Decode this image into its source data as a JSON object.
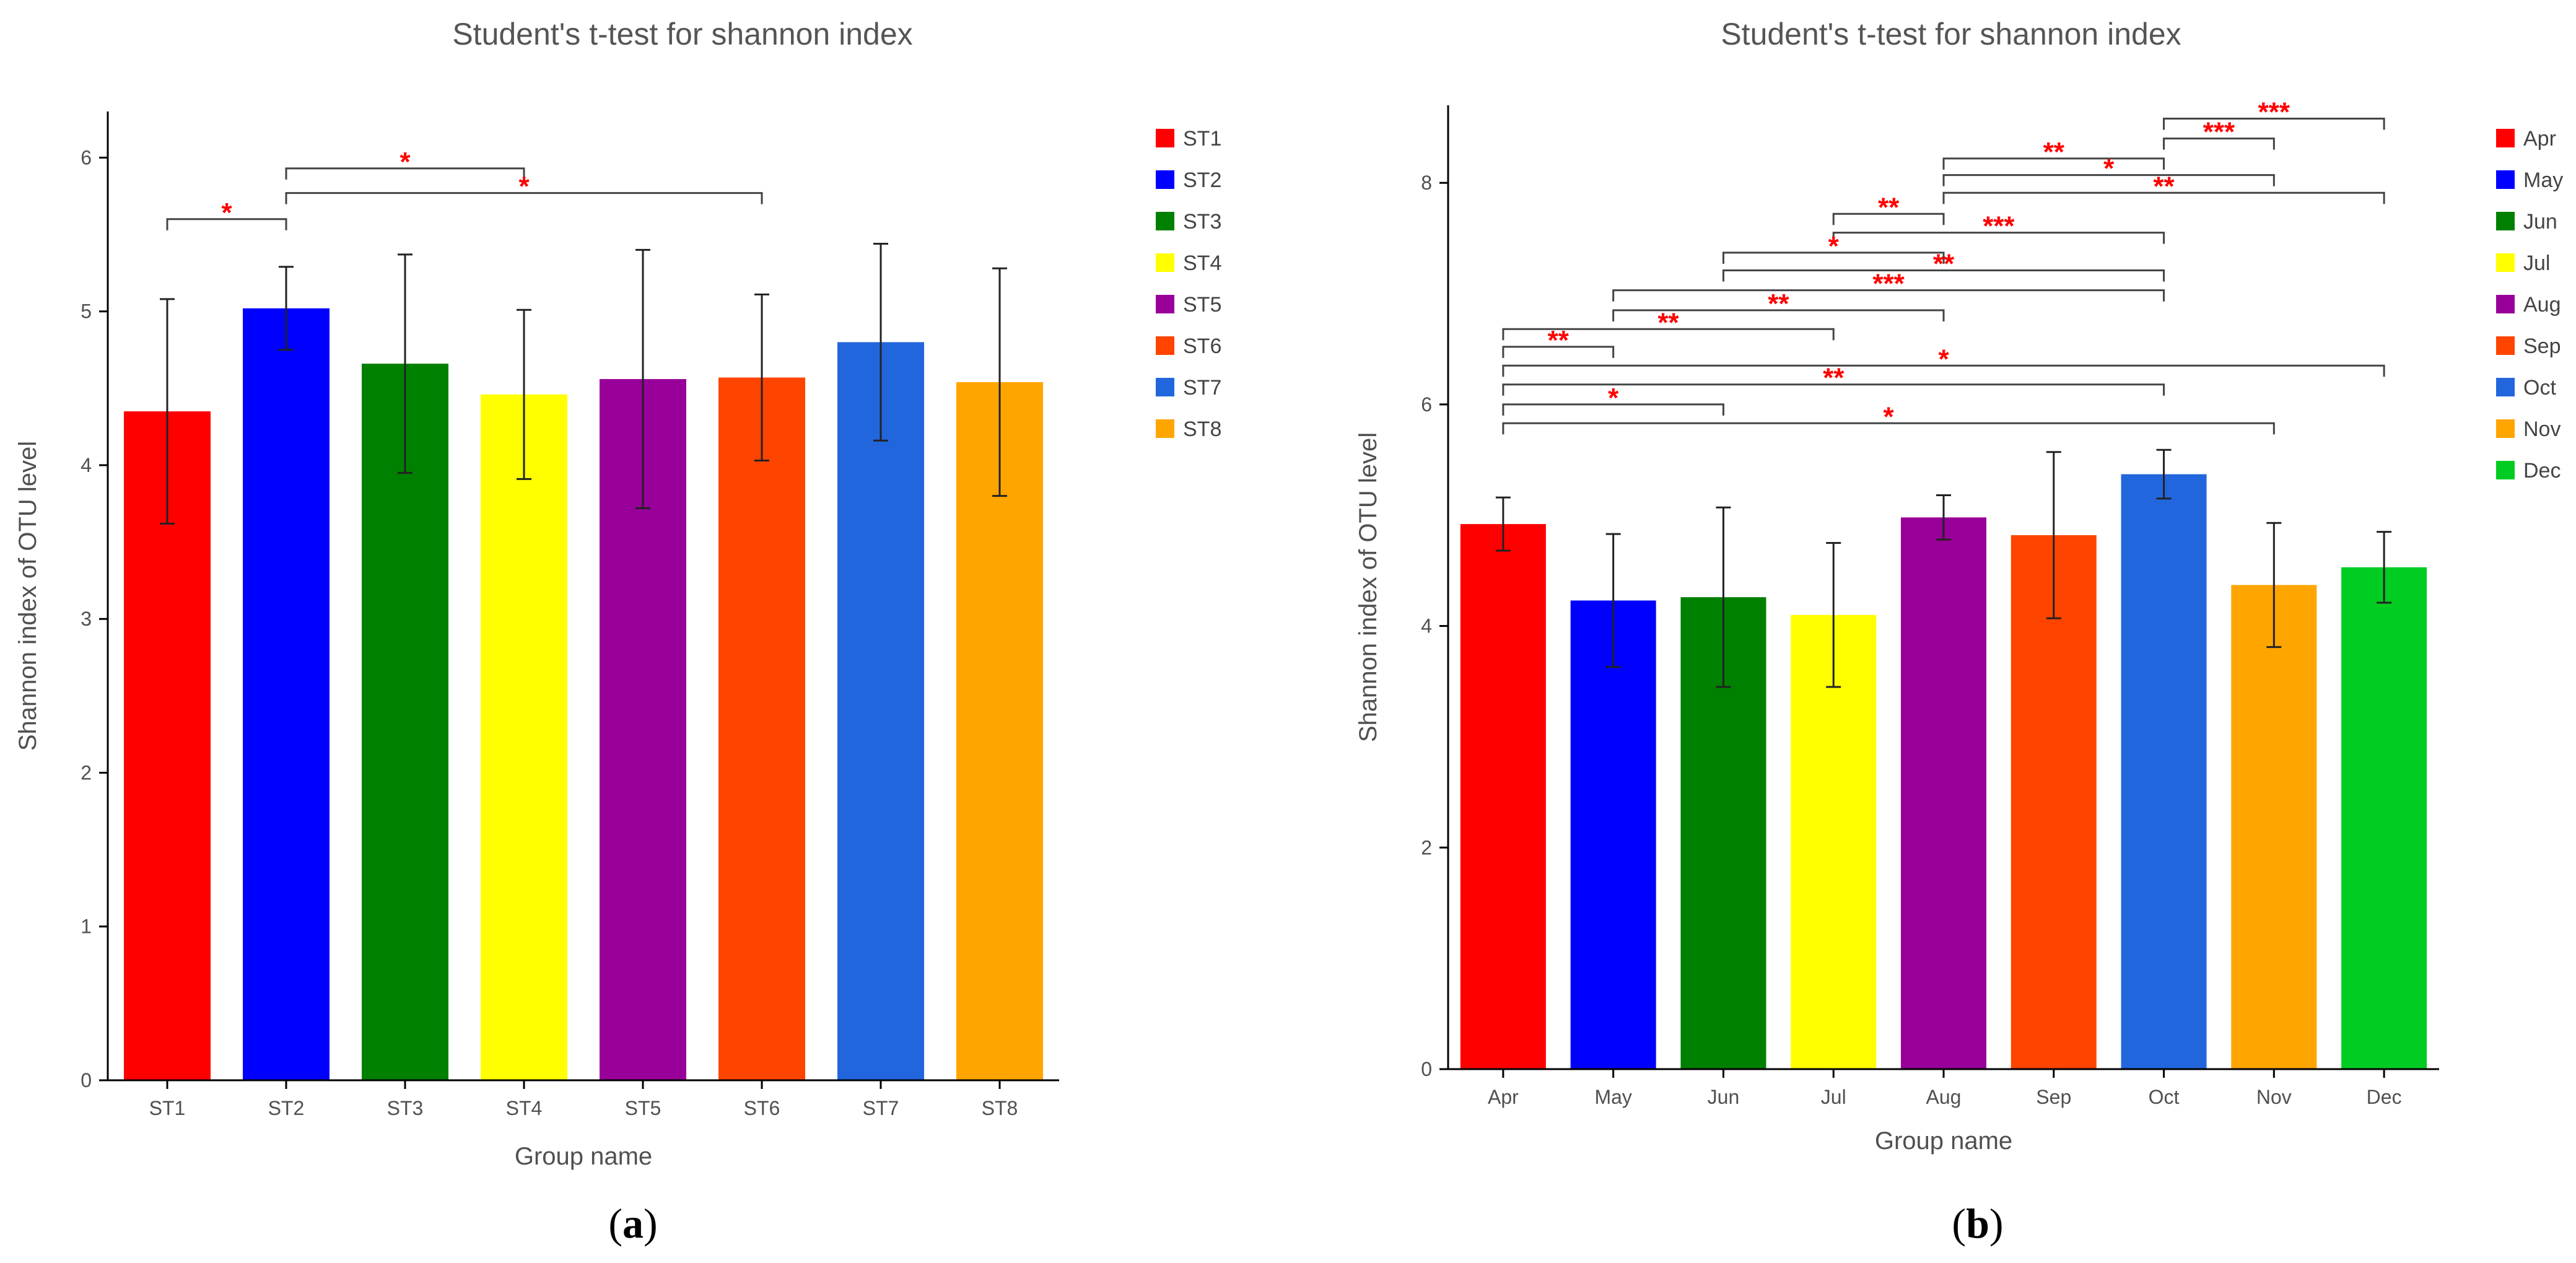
{
  "figure": {
    "caption_a": "a",
    "caption_b": "b"
  },
  "chart_data": [
    {
      "type": "bar",
      "title": "Student's t-test for shannon index",
      "xlabel": "Group name",
      "ylabel": "Shannon index of OTU level",
      "ylim": [
        0,
        6.3
      ],
      "yticks": [
        0,
        1,
        2,
        3,
        4,
        5,
        6
      ],
      "categories": [
        "ST1",
        "ST2",
        "ST3",
        "ST4",
        "ST5",
        "ST6",
        "ST7",
        "ST8"
      ],
      "values": [
        4.35,
        5.02,
        4.66,
        4.46,
        4.56,
        4.57,
        4.8,
        4.54
      ],
      "error": [
        0.73,
        0.27,
        0.71,
        0.55,
        0.84,
        0.54,
        0.64,
        0.74
      ],
      "colors": [
        "#ff0000",
        "#0000ff",
        "#008000",
        "#ffff00",
        "#990099",
        "#ff4400",
        "#2266dd",
        "#ffa500"
      ],
      "legend": [
        "ST1",
        "ST2",
        "ST3",
        "ST4",
        "ST5",
        "ST6",
        "ST7",
        "ST8"
      ],
      "legend_position": "right",
      "significance": [
        {
          "from": "ST1",
          "to": "ST2",
          "label": "*"
        },
        {
          "from": "ST2",
          "to": "ST4",
          "label": "*"
        },
        {
          "from": "ST2",
          "to": "ST6",
          "label": "*"
        }
      ]
    },
    {
      "type": "bar",
      "title": "Student's t-test for shannon index",
      "xlabel": "Group name",
      "ylabel": "Shannon index of OTU level",
      "ylim": [
        0,
        8.7
      ],
      "yticks": [
        0,
        2,
        4,
        6,
        8
      ],
      "categories": [
        "Apr",
        "May",
        "Jun",
        "Jul",
        "Aug",
        "Sep",
        "Oct",
        "Nov",
        "Dec"
      ],
      "values": [
        4.92,
        4.23,
        4.26,
        4.1,
        4.98,
        4.82,
        5.37,
        4.37,
        4.53
      ],
      "error": [
        0.24,
        0.6,
        0.81,
        0.65,
        0.2,
        0.75,
        0.22,
        0.56,
        0.32
      ],
      "colors": [
        "#ff0000",
        "#0000ff",
        "#008000",
        "#ffff00",
        "#990099",
        "#ff4400",
        "#2266dd",
        "#ffa500",
        "#00cc22"
      ],
      "legend": [
        "Apr",
        "May",
        "Jun",
        "Jul",
        "Aug",
        "Sep",
        "Oct",
        "Nov",
        "Dec"
      ],
      "legend_position": "right",
      "significance": [
        {
          "from": "Oct",
          "to": "Dec",
          "label": "***"
        },
        {
          "from": "Oct",
          "to": "Nov",
          "label": "***"
        },
        {
          "from": "Aug",
          "to": "Oct",
          "label": "**"
        },
        {
          "from": "Aug",
          "to": "Nov",
          "label": "*"
        },
        {
          "from": "Aug",
          "to": "Dec",
          "label": "**"
        },
        {
          "from": "Jul",
          "to": "Aug",
          "label": "**"
        },
        {
          "from": "Jul",
          "to": "Oct",
          "label": "***"
        },
        {
          "from": "Jun",
          "to": "Aug",
          "label": "*"
        },
        {
          "from": "Jun",
          "to": "Oct",
          "label": "**"
        },
        {
          "from": "May",
          "to": "Oct",
          "label": "***"
        },
        {
          "from": "May",
          "to": "Aug",
          "label": "**"
        },
        {
          "from": "Apr",
          "to": "Jul",
          "label": "**"
        },
        {
          "from": "Apr",
          "to": "May",
          "label": "**"
        },
        {
          "from": "Apr",
          "to": "Dec",
          "label": "*"
        },
        {
          "from": "Apr",
          "to": "Oct",
          "label": "**"
        },
        {
          "from": "Apr",
          "to": "Jun",
          "label": "*"
        },
        {
          "from": "Apr",
          "to": "Nov",
          "label": "*"
        }
      ]
    }
  ]
}
